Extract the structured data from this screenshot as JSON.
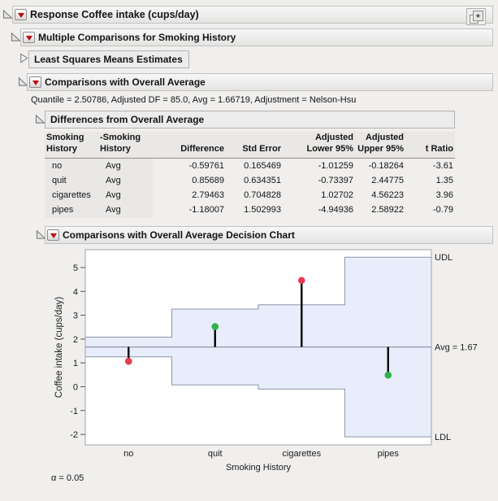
{
  "outline": {
    "response_title": "Response Coffee intake (cups/day)",
    "multiple_comparisons_title": "Multiple Comparisons for Smoking History",
    "lsm_title": "Least Squares Means Estimates",
    "cwoa_title": "Comparisons with Overall Average",
    "quantile_line": "Quantile = 2.50786, Adjusted DF = 85.0, Avg = 1.66719, Adjustment = Nelson-Hsu",
    "differences_title": "Differences from Overall Average",
    "decision_chart_title": "Comparisons with Overall Average Decision Chart"
  },
  "icons": {
    "red_triangle": "▼",
    "disclosure_open": "◺",
    "disclosure_closed": "▷",
    "report_star": "★"
  },
  "colors": {
    "accent_red": "#c00b0b",
    "table_stripe": "#e9e8e7",
    "band_fill": "#e7edfa",
    "band_edge": "#8e96a8",
    "significant_point": "#e83a50",
    "not_significant_point": "#2cb34b"
  },
  "table": {
    "headers": [
      [
        "Smoking",
        "History"
      ],
      [
        "-Smoking",
        "History"
      ],
      [
        "Difference"
      ],
      [
        "Std Error"
      ],
      [
        "Adjusted",
        "Lower 95%"
      ],
      [
        "Adjusted",
        "Upper 95%"
      ],
      [
        "t Ratio"
      ]
    ],
    "rows": [
      [
        "no",
        "Avg",
        "-0.59761",
        "0.165469",
        "-1.01259",
        "-0.18264",
        "-3.61"
      ],
      [
        "quit",
        "Avg",
        "0.85689",
        "0.634351",
        "-0.73397",
        "2.44775",
        "1.35"
      ],
      [
        "cigarettes",
        "Avg",
        "2.79463",
        "0.704828",
        "1.02702",
        "4.56223",
        "3.96"
      ],
      [
        "pipes",
        "Avg",
        "-1.18007",
        "1.502993",
        "-4.94936",
        "2.58922",
        "-0.79"
      ]
    ]
  },
  "chart_data": {
    "type": "scatter",
    "subtype": "comparisons-with-overall-average-decision-chart",
    "title": "Comparisons with Overall Average Decision Chart",
    "categories": [
      "no",
      "quit",
      "cigarettes",
      "pipes"
    ],
    "group_means": [
      1.06958,
      2.52408,
      4.46182,
      0.48712
    ],
    "udl_steps": [
      2.08217,
      3.25806,
      3.43481,
      5.43648
    ],
    "ldl_steps": [
      1.25222,
      0.07632,
      -0.10043,
      -2.10209
    ],
    "avg": 1.66719,
    "avg_label": "Avg = 1.67",
    "udl_label": "UDL",
    "ldl_label": "LDL",
    "significant": [
      true,
      false,
      true,
      false
    ],
    "yticks": [
      -2,
      -1,
      0,
      1,
      2,
      3,
      4,
      5
    ],
    "ylim": [
      -2.44,
      5.75
    ],
    "xlabel": "Smoking History",
    "ylabel": "Coffee intake (cups/day)",
    "legend": "none",
    "grid": false,
    "footnote": "α = 0.05"
  }
}
